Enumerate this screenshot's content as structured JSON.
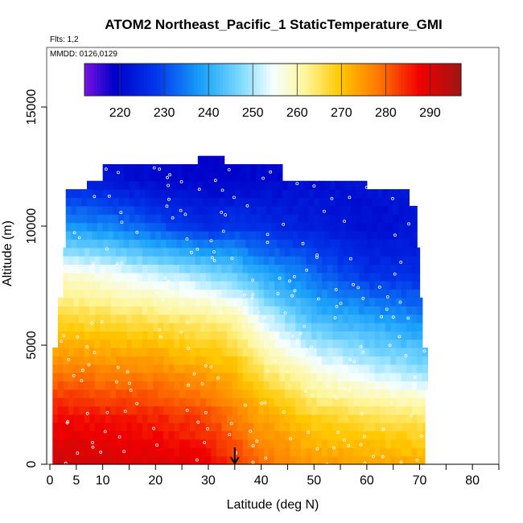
{
  "chart_data": {
    "type": "heatmap",
    "title": "ATOM2 Northeast_Pacific_1 StaticTemperature_GMI",
    "flights_label": "Flts: 1,2",
    "dates_label": "MMDD: 0126,0129",
    "xlabel": "Latitude (deg N)",
    "ylabel": "Altitude (m)",
    "xlim": [
      0,
      85
    ],
    "ylim": [
      0,
      17500
    ],
    "x_ticks": [
      0,
      5,
      10,
      20,
      30,
      40,
      50,
      60,
      70,
      80
    ],
    "y_ticks": [
      0,
      5000,
      10000,
      15000
    ],
    "colorbar": {
      "min": 212,
      "max": 297,
      "ticks": [
        220,
        230,
        240,
        250,
        260,
        270,
        280,
        290
      ]
    },
    "arrow_latitude": 35,
    "temperature_grid": {
      "latitudes": [
        0,
        10,
        20,
        30,
        35,
        40,
        50,
        60,
        70
      ],
      "altitudes": [
        0,
        2000,
        4000,
        6000,
        8000,
        10000,
        12000
      ],
      "values_K": [
        [
          292,
          291,
          290,
          288,
          284,
          279,
          275,
          274,
          273
        ],
        [
          287,
          286,
          285,
          282,
          278,
          274,
          268,
          266,
          265
        ],
        [
          278,
          277,
          276,
          273,
          271,
          265,
          257,
          252,
          248
        ],
        [
          268,
          267,
          266,
          264,
          262,
          254,
          243,
          240,
          237
        ],
        [
          258,
          256,
          252,
          248,
          245,
          240,
          233,
          227,
          226
        ],
        [
          238,
          236,
          231,
          226,
          228,
          226,
          224,
          221,
          222
        ],
        [
          225,
          222,
          220,
          219,
          219,
          220,
          221,
          222,
          223
        ]
      ]
    }
  }
}
